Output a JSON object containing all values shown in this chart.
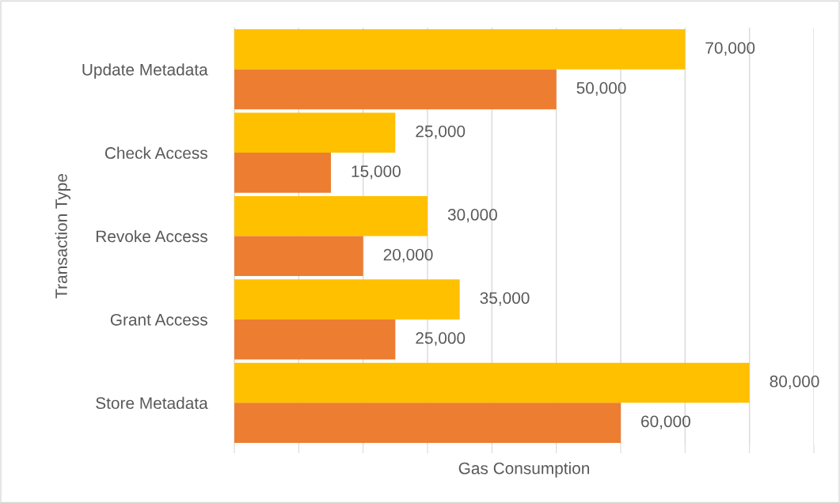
{
  "chart_data": {
    "type": "bar",
    "orientation": "horizontal",
    "xlabel": "Gas Consumption",
    "ylabel": "Transaction Type",
    "categories": [
      "Update Metadata",
      "Check Access",
      "Revoke Access",
      "Grant Access",
      "Store Metadata"
    ],
    "series": [
      {
        "color": "#ffc000",
        "values": [
          70000,
          25000,
          30000,
          35000,
          80000
        ],
        "value_labels": [
          "70,000",
          "25,000",
          "30,000",
          "35,000",
          "80,000"
        ]
      },
      {
        "color": "#ed7d31",
        "values": [
          50000,
          15000,
          20000,
          25000,
          60000
        ],
        "value_labels": [
          "50,000",
          "15,000",
          "20,000",
          "25,000",
          "60,000"
        ]
      }
    ],
    "xlim": [
      0,
      90000
    ],
    "xticks": [
      {
        "value": 0,
        "label": null
      },
      {
        "value": 10000,
        "label": null
      },
      {
        "value": 20000,
        "label": null
      },
      {
        "value": 30000,
        "label": null
      },
      {
        "value": 40000,
        "label": null
      },
      {
        "value": 50000,
        "label": null
      },
      {
        "value": 60000,
        "label": null
      },
      {
        "value": 70000,
        "label": null
      },
      {
        "value": 80000,
        "label": null
      },
      {
        "value": 90000,
        "label": null
      }
    ],
    "tick_labels": "y",
    "grid": "x",
    "legend": false
  }
}
